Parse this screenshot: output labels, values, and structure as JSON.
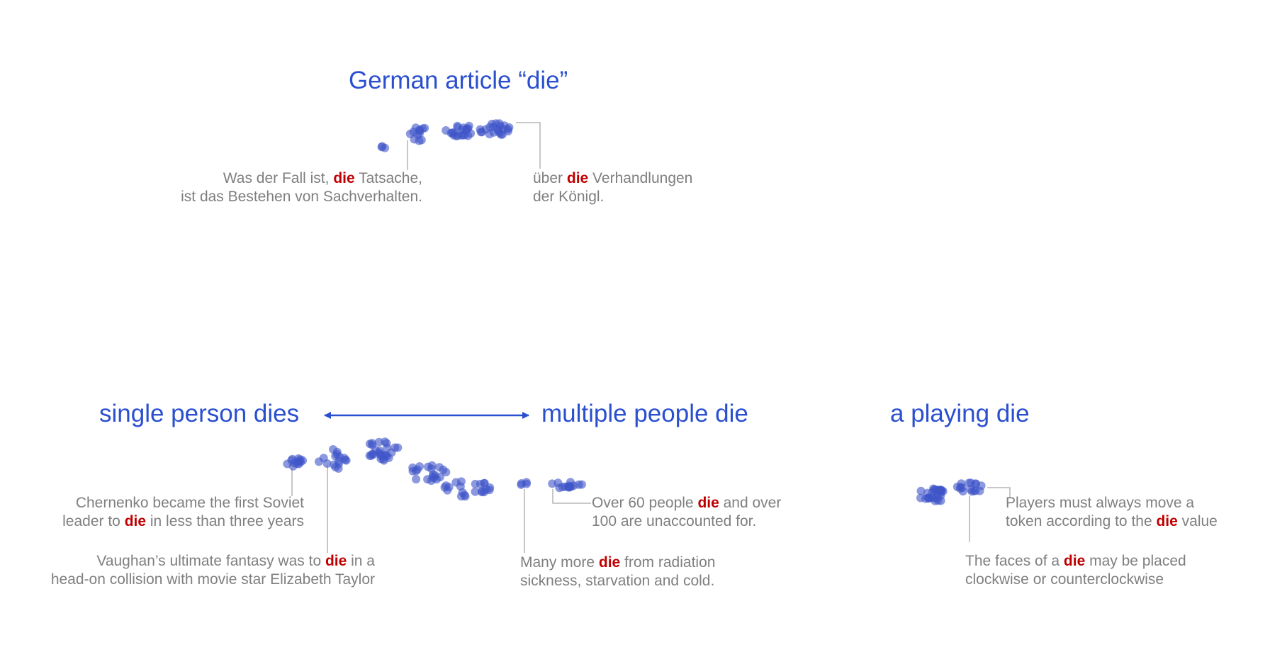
{
  "colors": {
    "title": "#2a4fcf",
    "dot": "#3f55c8",
    "caption": "#7f7f7f",
    "highlight": "#c00000",
    "leader": "#a9a9a9"
  },
  "titles": {
    "german": "German article “die”",
    "single": "single person dies",
    "multiple": "multiple people die",
    "playing": "a playing die"
  },
  "arrow": {
    "icon": "double-headed-arrow"
  },
  "captions": {
    "german_left": {
      "l1a": "Was der Fall ist, ",
      "l1hl": "die",
      "l1b": " Tatsache,",
      "l2": "ist das Bestehen von Sachverhalten."
    },
    "german_right": {
      "l1a": "über ",
      "l1hl": "die",
      "l1b": " Verhandlungen",
      "l2": "der Königl."
    },
    "chernenko": {
      "l1": "Chernenko became the first Soviet",
      "l2a": "leader to ",
      "l2hl": "die",
      "l2b": " in less than three years"
    },
    "vaughan": {
      "l1a": "Vaughan’s ultimate fantasy was to ",
      "l1hl": "die",
      "l1b": " in a",
      "l2": "head-on collision with movie star Elizabeth Taylor"
    },
    "over60": {
      "l1a": "Over 60 people ",
      "l1hl": "die",
      "l1b": " and over",
      "l2": "100 are unaccounted for."
    },
    "manymore": {
      "l1a": "Many more ",
      "l1hl": "die",
      "l1b": " from radiation",
      "l2": "sickness, starvation and cold."
    },
    "players": {
      "l1": "Players must always move a",
      "l2a": "token according to the ",
      "l2hl": "die",
      "l2b": " value"
    },
    "faces": {
      "l1a": "The faces of a ",
      "l1hl": "die",
      "l1b": " may be placed",
      "l2": "clockwise or counterclockwise"
    }
  }
}
